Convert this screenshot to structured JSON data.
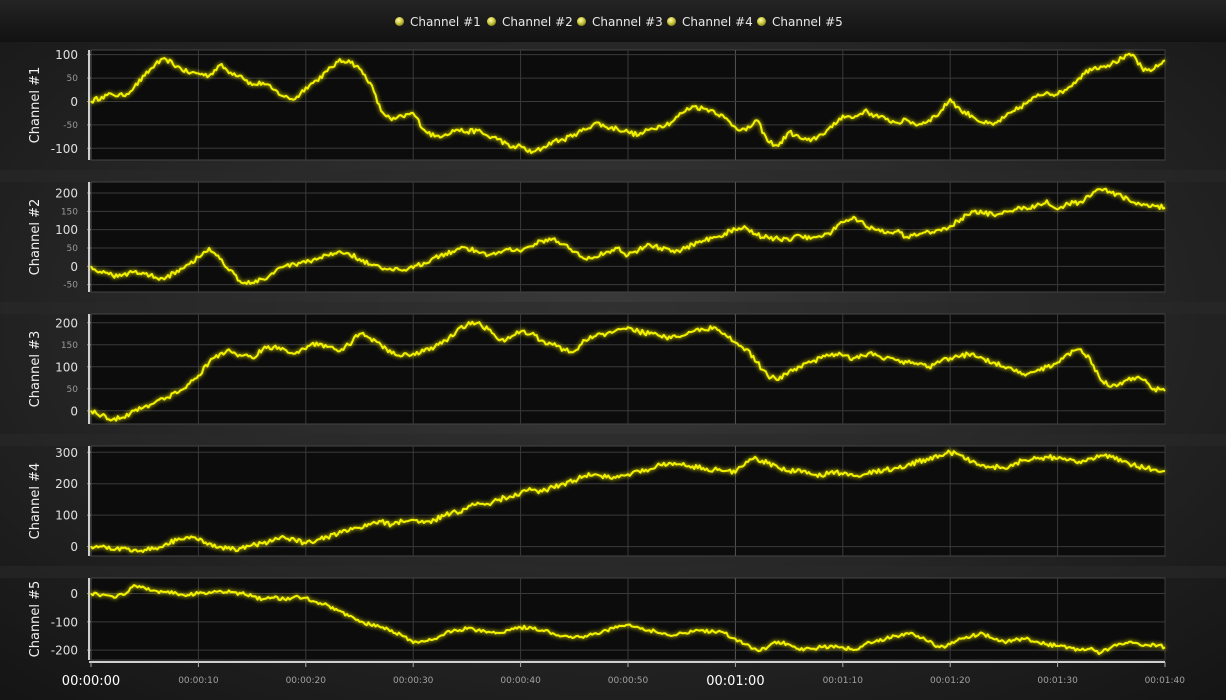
{
  "legend": {
    "items": [
      "Channel #1",
      "Channel #2",
      "Channel #3",
      "Channel #4",
      "Channel #5"
    ],
    "marker_color": "#d6d24a"
  },
  "colors": {
    "line": "#ffff3a",
    "glow": "#ffff00",
    "grid": "#3a3a3a",
    "plot_bg": "#0c0c0c"
  },
  "chart_data": {
    "type": "line",
    "x_unit": "seconds",
    "xlim": [
      0,
      100
    ],
    "x_ticks": [
      0,
      10,
      20,
      30,
      40,
      50,
      60,
      70,
      80,
      90,
      100
    ],
    "x_tick_labels": [
      "00:00:00",
      "00:00:10",
      "00:00:20",
      "00:00:30",
      "00:00:40",
      "00:00:50",
      "00:01:00",
      "00:01:10",
      "00:01:20",
      "00:01:30",
      "00:01:40"
    ],
    "x_major_ticks": [
      0,
      60
    ],
    "grid": true,
    "legend_position": "top-center",
    "x": [
      0,
      1,
      2,
      3,
      4,
      5,
      6,
      7,
      8,
      9,
      10,
      11,
      12,
      13,
      14,
      15,
      16,
      17,
      18,
      19,
      20,
      21,
      22,
      23,
      24,
      25,
      26,
      27,
      28,
      29,
      30,
      31,
      32,
      33,
      34,
      35,
      36,
      37,
      38,
      39,
      40,
      41,
      42,
      43,
      44,
      45,
      46,
      47,
      48,
      49,
      50,
      51,
      52,
      53,
      54,
      55,
      56,
      57,
      58,
      59,
      60,
      61,
      62,
      63,
      64,
      65,
      66,
      67,
      68,
      69,
      70,
      71,
      72,
      73,
      74,
      75,
      76,
      77,
      78,
      79,
      80,
      81,
      82,
      83,
      84,
      85,
      86,
      87,
      88,
      89,
      90,
      91,
      92,
      93,
      94,
      95,
      96,
      97,
      98,
      99,
      100
    ],
    "panels": [
      {
        "ylabel": "Channel #1",
        "ylim": [
          -125,
          110
        ],
        "y_ticks": [
          100,
          50,
          0,
          -50,
          -100
        ],
        "values": [
          0,
          10,
          15,
          12,
          30,
          55,
          80,
          90,
          75,
          62,
          60,
          55,
          78,
          62,
          55,
          35,
          40,
          25,
          10,
          5,
          30,
          45,
          65,
          85,
          88,
          70,
          40,
          -20,
          -40,
          -32,
          -25,
          -60,
          -75,
          -70,
          -60,
          -65,
          -62,
          -75,
          -80,
          -98,
          -95,
          -110,
          -100,
          -85,
          -82,
          -70,
          -60,
          -45,
          -55,
          -58,
          -65,
          -72,
          -60,
          -52,
          -45,
          -25,
          -10,
          -15,
          -20,
          -35,
          -55,
          -62,
          -40,
          -85,
          -95,
          -65,
          -78,
          -85,
          -70,
          -55,
          -30,
          -35,
          -20,
          -30,
          -38,
          -45,
          -40,
          -50,
          -40,
          -25,
          5,
          -20,
          -30,
          -45,
          -50,
          -35,
          -20,
          -5,
          10,
          20,
          15,
          30,
          50,
          70,
          75,
          80,
          92,
          100,
          65,
          70,
          88
        ]
      },
      {
        "ylabel": "Channel #2",
        "ylim": [
          -70,
          230
        ],
        "y_ticks": [
          200,
          150,
          100,
          50,
          0,
          -50
        ],
        "values": [
          0,
          -18,
          -25,
          -22,
          -15,
          -20,
          -30,
          -30,
          -12,
          5,
          25,
          50,
          20,
          -10,
          -45,
          -45,
          -35,
          -20,
          0,
          5,
          10,
          18,
          30,
          40,
          35,
          20,
          5,
          -5,
          -10,
          -12,
          -5,
          10,
          25,
          35,
          45,
          50,
          40,
          30,
          40,
          50,
          40,
          55,
          70,
          75,
          60,
          40,
          20,
          25,
          40,
          50,
          30,
          45,
          60,
          50,
          40,
          45,
          60,
          70,
          80,
          90,
          100,
          105,
          85,
          80,
          75,
          70,
          85,
          75,
          80,
          95,
          120,
          135,
          115,
          100,
          90,
          95,
          80,
          85,
          95,
          100,
          110,
          130,
          150,
          145,
          140,
          150,
          155,
          160,
          165,
          180,
          155,
          170,
          175,
          190,
          210,
          200,
          190,
          175,
          170,
          165,
          160
        ]
      },
      {
        "ylabel": "Channel #3",
        "ylim": [
          -30,
          220
        ],
        "y_ticks": [
          200,
          150,
          100,
          50,
          0
        ],
        "values": [
          0,
          -10,
          -20,
          -15,
          0,
          10,
          20,
          30,
          40,
          60,
          80,
          110,
          130,
          135,
          125,
          120,
          140,
          145,
          140,
          130,
          140,
          155,
          145,
          135,
          150,
          175,
          165,
          150,
          130,
          125,
          130,
          135,
          145,
          160,
          180,
          195,
          200,
          185,
          160,
          165,
          180,
          175,
          160,
          150,
          140,
          135,
          160,
          170,
          175,
          185,
          190,
          180,
          175,
          170,
          165,
          170,
          180,
          185,
          190,
          175,
          155,
          140,
          110,
          80,
          70,
          90,
          100,
          110,
          120,
          130,
          125,
          120,
          125,
          130,
          120,
          115,
          110,
          105,
          100,
          110,
          120,
          125,
          130,
          120,
          110,
          100,
          90,
          80,
          90,
          100,
          110,
          130,
          140,
          120,
          70,
          55,
          60,
          75,
          70,
          50,
          45
        ]
      },
      {
        "ylabel": "Channel #4",
        "ylim": [
          -30,
          320
        ],
        "y_ticks": [
          300,
          200,
          100,
          0
        ],
        "values": [
          0,
          0,
          -10,
          -5,
          -10,
          -10,
          -5,
          10,
          20,
          30,
          20,
          10,
          0,
          -10,
          -5,
          5,
          10,
          20,
          30,
          20,
          10,
          20,
          30,
          40,
          50,
          60,
          70,
          80,
          70,
          80,
          85,
          75,
          85,
          100,
          110,
          120,
          140,
          135,
          150,
          160,
          170,
          180,
          175,
          190,
          200,
          210,
          225,
          230,
          220,
          225,
          230,
          240,
          245,
          260,
          265,
          260,
          255,
          250,
          245,
          240,
          235,
          270,
          280,
          265,
          250,
          240,
          245,
          230,
          225,
          240,
          230,
          225,
          230,
          240,
          245,
          250,
          260,
          270,
          275,
          290,
          300,
          290,
          270,
          260,
          255,
          250,
          265,
          275,
          280,
          285,
          280,
          275,
          270,
          280,
          290,
          285,
          270,
          260,
          250,
          245,
          240
        ]
      },
      {
        "ylabel": "Channel #5",
        "ylim": [
          -235,
          55
        ],
        "y_ticks": [
          0,
          -100,
          -200
        ],
        "values": [
          0,
          -5,
          -10,
          -5,
          30,
          20,
          10,
          5,
          0,
          -5,
          0,
          5,
          10,
          5,
          0,
          -10,
          -20,
          -15,
          -20,
          -10,
          -15,
          -30,
          -40,
          -60,
          -80,
          -100,
          -110,
          -120,
          -130,
          -150,
          -175,
          -170,
          -160,
          -140,
          -130,
          -125,
          -130,
          -135,
          -140,
          -130,
          -120,
          -120,
          -130,
          -140,
          -150,
          -155,
          -150,
          -140,
          -130,
          -120,
          -110,
          -120,
          -130,
          -140,
          -150,
          -140,
          -135,
          -130,
          -135,
          -140,
          -160,
          -180,
          -200,
          -190,
          -170,
          -180,
          -200,
          -195,
          -190,
          -185,
          -190,
          -200,
          -180,
          -170,
          -160,
          -150,
          -140,
          -150,
          -170,
          -190,
          -180,
          -160,
          -150,
          -140,
          -160,
          -170,
          -165,
          -160,
          -170,
          -180,
          -185,
          -190,
          -200,
          -195,
          -210,
          -190,
          -180,
          -175,
          -185,
          -180,
          -190
        ]
      }
    ]
  }
}
